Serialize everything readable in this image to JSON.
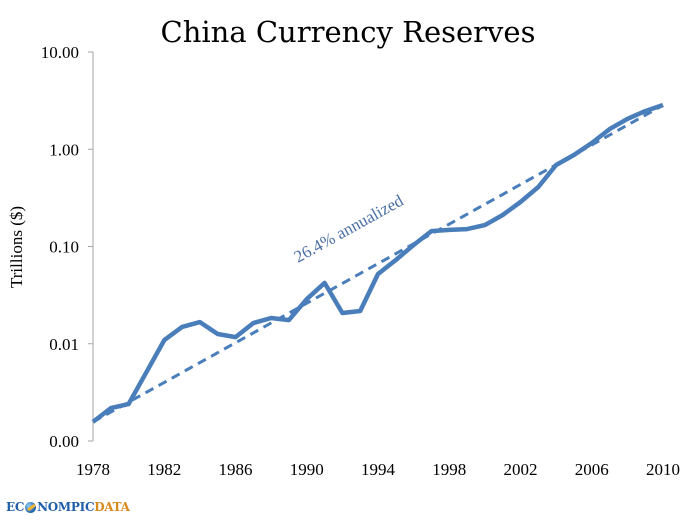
{
  "chart_data": {
    "type": "line",
    "title": "China Currency Reserves",
    "xlabel": "",
    "ylabel": "Trillions ($)",
    "yscale": "log",
    "ylim": [
      0.001,
      10
    ],
    "xlim": [
      1978,
      2010
    ],
    "grid": false,
    "legend": "none",
    "x_ticks": [
      1978,
      1982,
      1986,
      1990,
      1994,
      1998,
      2002,
      2006,
      2010
    ],
    "x_tick_labels": [
      "1978",
      "1982",
      "1986",
      "1990",
      "1994",
      "1998",
      "2002",
      "2006",
      "2010"
    ],
    "y_ticks": [
      10,
      1,
      0.1,
      0.01,
      0.001
    ],
    "y_tick_labels": [
      "10.00",
      "1.00",
      "0.10",
      "0.01",
      "0.00"
    ],
    "x": [
      1978,
      1979,
      1980,
      1981,
      1982,
      1983,
      1984,
      1985,
      1986,
      1987,
      1988,
      1989,
      1990,
      1991,
      1992,
      1993,
      1994,
      1995,
      1996,
      1997,
      1998,
      1999,
      2000,
      2001,
      2002,
      2003,
      2004,
      2005,
      2006,
      2007,
      2008,
      2009,
      2010
    ],
    "series": [
      {
        "name": "China Currency Reserves",
        "style": "solid",
        "color": "#4a7ebb",
        "values": [
          0.00157,
          0.00218,
          0.0024,
          0.0051,
          0.0109,
          0.0149,
          0.0167,
          0.0126,
          0.0117,
          0.0163,
          0.0184,
          0.0175,
          0.0288,
          0.0422,
          0.0207,
          0.0217,
          0.0521,
          0.0726,
          0.1035,
          0.144,
          0.148,
          0.151,
          0.166,
          0.211,
          0.287,
          0.409,
          0.689,
          0.873,
          1.16,
          1.61,
          2.05,
          2.47,
          2.85
        ]
      },
      {
        "name": "Trend (26.4% annualized)",
        "style": "dashed",
        "color": "#4a7ebb",
        "growth_rate": 0.264,
        "x": [
          1978,
          2010
        ],
        "values": [
          0.00157,
          2.83
        ]
      }
    ],
    "annotations": [
      {
        "text": "26.4% annualized",
        "x": 1992.5,
        "y": 0.1,
        "color": "#4a6fa5"
      }
    ]
  },
  "footer": {
    "logo_part1": "EC",
    "logo_part2": "NOMPIC",
    "logo_part3": "DATA"
  }
}
